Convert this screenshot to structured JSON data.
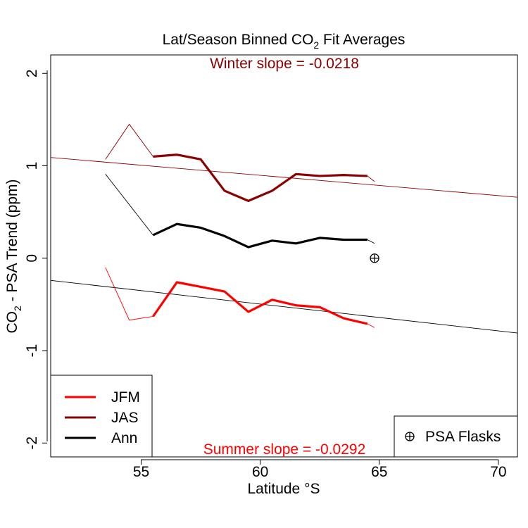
{
  "chart_data": {
    "type": "line",
    "title": "Lat/Season Binned CO",
    "title_subscript": "2",
    "title_suffix": " Fit Averages",
    "xlabel": "Latitude °S",
    "ylabel_prefix": "CO",
    "ylabel_subscript": "2",
    "ylabel_suffix": " - PSA Trend (ppm)",
    "xlim": [
      51.2,
      70.8
    ],
    "ylim": [
      -2.15,
      2.2
    ],
    "xticks": [
      55,
      60,
      65,
      70
    ],
    "yticks": [
      -2,
      -1,
      0,
      1,
      2
    ],
    "colors": {
      "jfm": "#ff0000",
      "jas": "#8b0000",
      "ann": "#000000"
    },
    "series": [
      {
        "name": "JFM",
        "color": "#ff0000",
        "x": [
          53.5,
          54.5,
          55.5,
          56.5,
          57.5,
          58.5,
          59.5,
          60.5,
          61.5,
          62.5,
          63.5,
          64.5,
          64.8
        ],
        "y": [
          -0.1,
          -0.67,
          -0.63,
          -0.26,
          -0.31,
          -0.36,
          -0.58,
          -0.45,
          -0.51,
          -0.53,
          -0.65,
          -0.71,
          -0.75
        ]
      },
      {
        "name": "JAS",
        "color": "#8b0000",
        "x": [
          53.5,
          54.5,
          55.5,
          56.5,
          57.5,
          58.5,
          59.5,
          60.5,
          61.5,
          62.5,
          63.5,
          64.5,
          64.8
        ],
        "y": [
          1.07,
          1.45,
          1.1,
          1.12,
          1.07,
          0.73,
          0.62,
          0.73,
          0.91,
          0.89,
          0.9,
          0.89,
          0.83
        ]
      },
      {
        "name": "Ann",
        "color": "#000000",
        "x": [
          53.5,
          55.5,
          56.5,
          57.5,
          58.5,
          59.5,
          60.5,
          61.5,
          62.5,
          63.5,
          64.5,
          64.8
        ],
        "y": [
          0.91,
          0.25,
          0.37,
          0.33,
          0.24,
          0.12,
          0.19,
          0.16,
          0.22,
          0.2,
          0.2,
          0.16
        ]
      }
    ],
    "fits": [
      {
        "name": "Winter fit",
        "color": "#8b0000",
        "slope": -0.0218,
        "x": [
          51.2,
          70.8
        ],
        "y": [
          1.09,
          0.66
        ]
      },
      {
        "name": "Summer fit",
        "color": "#000000",
        "slope": -0.0292,
        "x": [
          51.2,
          70.8
        ],
        "y": [
          -0.24,
          -0.81
        ]
      }
    ],
    "psa_flask_point": {
      "x": 64.8,
      "y": 0.0
    },
    "annotations": [
      {
        "id": "winter",
        "text": "Winter slope = -0.0218",
        "color": "#8b0000",
        "position": "top"
      },
      {
        "id": "summer",
        "text": "Summer slope = -0.0292",
        "color": "#ff0000",
        "position": "bottom"
      }
    ],
    "legend": {
      "position": "bottom-left",
      "entries": [
        {
          "label": "JFM",
          "color": "#ff0000"
        },
        {
          "label": "JAS",
          "color": "#8b0000"
        },
        {
          "label": "Ann",
          "color": "#000000"
        }
      ]
    },
    "legend2": {
      "position": "bottom-right",
      "symbol": "⊕",
      "label": "PSA Flasks"
    }
  }
}
